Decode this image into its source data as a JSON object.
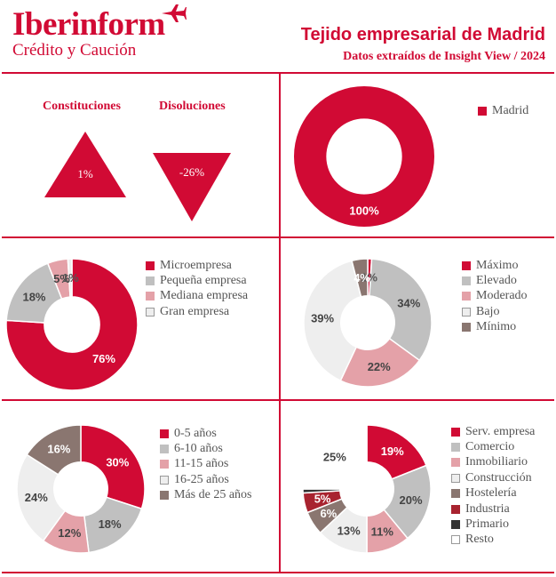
{
  "header": {
    "brand": "Iberinform",
    "brand_sub": "Crédito y Caución",
    "title": "Tejido empresarial de Madrid",
    "subtitle": "Datos extraídos de Insight View / 2024"
  },
  "colors": {
    "accent": "#d10a34"
  },
  "indicators": {
    "constituciones": {
      "label": "Constituciones",
      "value": "1%"
    },
    "disoluciones": {
      "label": "Disoluciones",
      "value": "-26%"
    }
  },
  "chart_data": [
    {
      "type": "pie",
      "id": "region",
      "categories": [
        "Madrid"
      ],
      "values": [
        100
      ],
      "labels": [
        "100%"
      ],
      "colors": [
        "#d10a34"
      ],
      "legend_position": "right"
    },
    {
      "type": "pie",
      "id": "size",
      "categories": [
        "Microempresa",
        "Pequeña empresa",
        "Mediana empresa",
        "Gran empresa"
      ],
      "values": [
        76,
        18,
        5,
        1
      ],
      "labels": [
        "76%",
        "18%",
        "5%",
        "1%"
      ],
      "colors": [
        "#d10a34",
        "#c0c0c0",
        "#e4a1a8",
        "#eeeeee"
      ],
      "legend_position": "right"
    },
    {
      "type": "pie",
      "id": "risk",
      "categories": [
        "Máximo",
        "Elevado",
        "Moderado",
        "Bajo",
        "Mínimo"
      ],
      "values": [
        1,
        34,
        22,
        39,
        4
      ],
      "labels": [
        "1%",
        "34%",
        "22%",
        "39%",
        "4%"
      ],
      "colors": [
        "#d10a34",
        "#c0c0c0",
        "#e4a1a8",
        "#eeeeee",
        "#8a7670"
      ],
      "legend_position": "right"
    },
    {
      "type": "pie",
      "id": "age",
      "categories": [
        "0-5 años",
        "6-10 años",
        "11-15 años",
        "16-25 años",
        "Más de 25 años"
      ],
      "values": [
        30,
        18,
        12,
        24,
        16
      ],
      "labels": [
        "30%",
        "18%",
        "12%",
        "24%",
        "16%"
      ],
      "colors": [
        "#d10a34",
        "#c0c0c0",
        "#e4a1a8",
        "#eeeeee",
        "#8a7670"
      ],
      "legend_position": "right"
    },
    {
      "type": "pie",
      "id": "sector",
      "categories": [
        "Serv. empresa",
        "Comercio",
        "Inmobiliario",
        "Construcción",
        "Hostelería",
        "Industria",
        "Primario",
        "Resto"
      ],
      "values": [
        19,
        20,
        11,
        13,
        6,
        5,
        1,
        25
      ],
      "labels": [
        "19%",
        "20%",
        "11%",
        "13%",
        "6%",
        "5%",
        "",
        "25%"
      ],
      "colors": [
        "#d10a34",
        "#c0c0c0",
        "#e4a1a8",
        "#eeeeee",
        "#8a7670",
        "#a8232f",
        "#333333",
        "#ffffff"
      ],
      "legend_position": "right"
    }
  ]
}
